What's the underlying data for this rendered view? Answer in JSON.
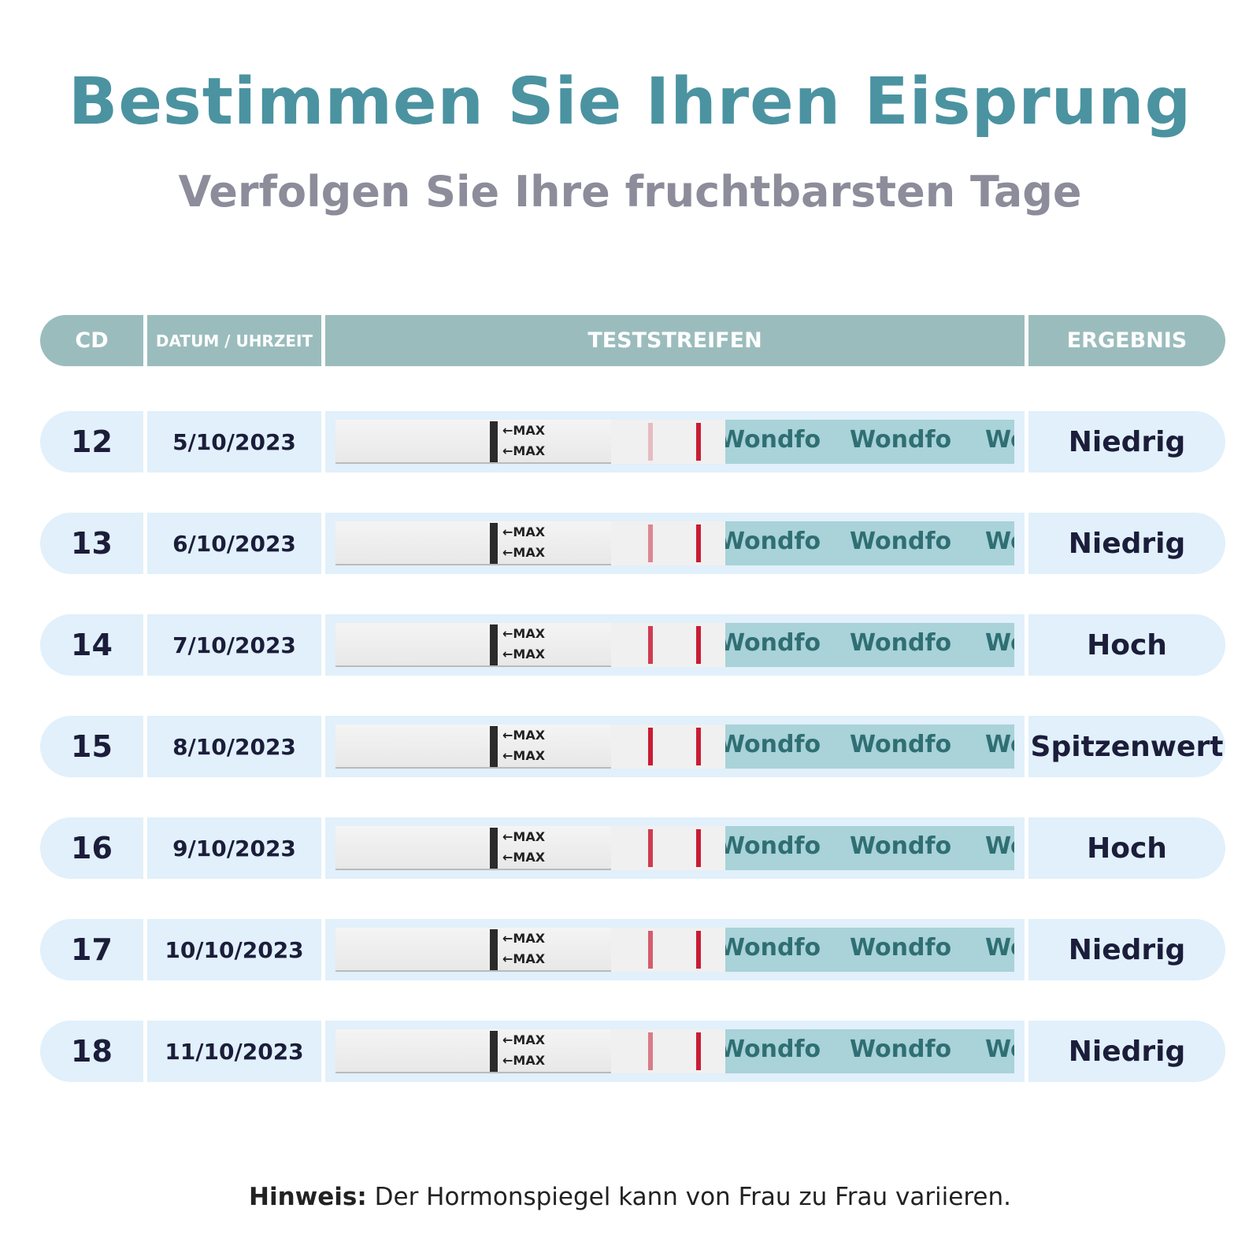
{
  "title": "Bestimmen Sie Ihren Eisprung",
  "subtitle": "Verfolgen Sie Ihre fruchtbarsten Tage",
  "columns": {
    "cd": "CD",
    "date": "DATUM / UHRZEIT",
    "strip": "TESTSTREIFEN",
    "result": "ERGEBNIS"
  },
  "strip_labels": {
    "max": "←MAX",
    "brand": "Wondfo"
  },
  "rows": [
    {
      "cd": "12",
      "date": "5/10/2023",
      "result": "Niedrig",
      "test_line_intensity": 0.25
    },
    {
      "cd": "13",
      "date": "6/10/2023",
      "result": "Niedrig",
      "test_line_intensity": 0.5
    },
    {
      "cd": "14",
      "date": "7/10/2023",
      "result": "Hoch",
      "test_line_intensity": 0.85
    },
    {
      "cd": "15",
      "date": "8/10/2023",
      "result": "Spitzenwert",
      "test_line_intensity": 1.0
    },
    {
      "cd": "16",
      "date": "9/10/2023",
      "result": "Hoch",
      "test_line_intensity": 0.85
    },
    {
      "cd": "17",
      "date": "10/10/2023",
      "result": "Niedrig",
      "test_line_intensity": 0.7
    },
    {
      "cd": "18",
      "date": "11/10/2023",
      "result": "Niedrig",
      "test_line_intensity": 0.55
    }
  ],
  "colors": {
    "title": "#4b93a1",
    "header": "#9bbcbd",
    "row": "#e1f0fa",
    "line": "#c91c34",
    "brand": "#a9d2d9"
  },
  "note": {
    "label": "Hinweis:",
    "text": " Der Hormonspiegel kann von Frau zu Frau variieren."
  }
}
